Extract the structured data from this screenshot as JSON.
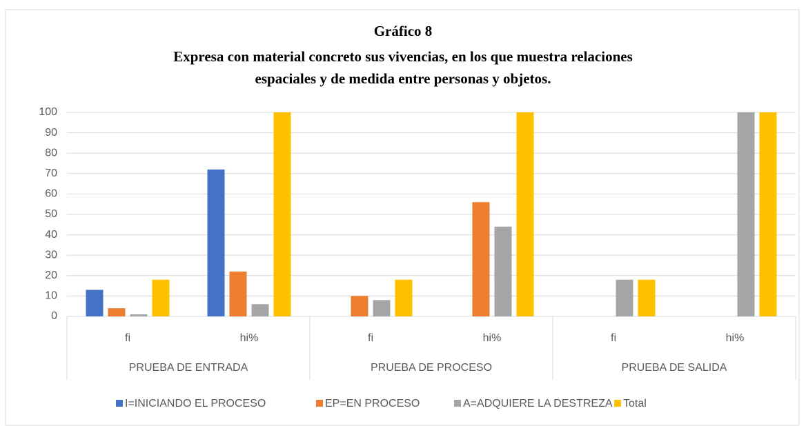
{
  "chart_data": {
    "type": "bar",
    "title": [
      "Gráfico 8",
      "Expresa con material concreto sus vivencias, en los que muestra relaciones",
      "espaciales y de medida entre personas y objetos."
    ],
    "categories": [
      "fi",
      "hi%",
      "fi",
      "hi%",
      "fi",
      "hi%"
    ],
    "group_labels": [
      "PRUEBA DE ENTRADA",
      "PRUEBA DE PROCESO",
      "PRUEBA DE SALIDA"
    ],
    "series": [
      {
        "name": "I=INICIANDO EL PROCESO",
        "color": "#4472c4",
        "values": [
          13,
          72,
          0,
          0,
          0,
          0
        ]
      },
      {
        "name": "EP=EN PROCESO",
        "color": "#ed7d31",
        "values": [
          4,
          22,
          10,
          56,
          0,
          0
        ]
      },
      {
        "name": "A=ADQUIERE LA DESTREZA",
        "color": "#a5a5a5",
        "values": [
          1,
          6,
          8,
          44,
          18,
          100
        ]
      },
      {
        "name": "Total",
        "color": "#ffc000",
        "values": [
          18,
          100,
          18,
          100,
          18,
          100
        ]
      }
    ],
    "ylim": [
      0,
      100
    ],
    "yticks": [
      0,
      10,
      20,
      30,
      40,
      50,
      60,
      70,
      80,
      90,
      100
    ],
    "grid": true,
    "legend": "bottom"
  }
}
